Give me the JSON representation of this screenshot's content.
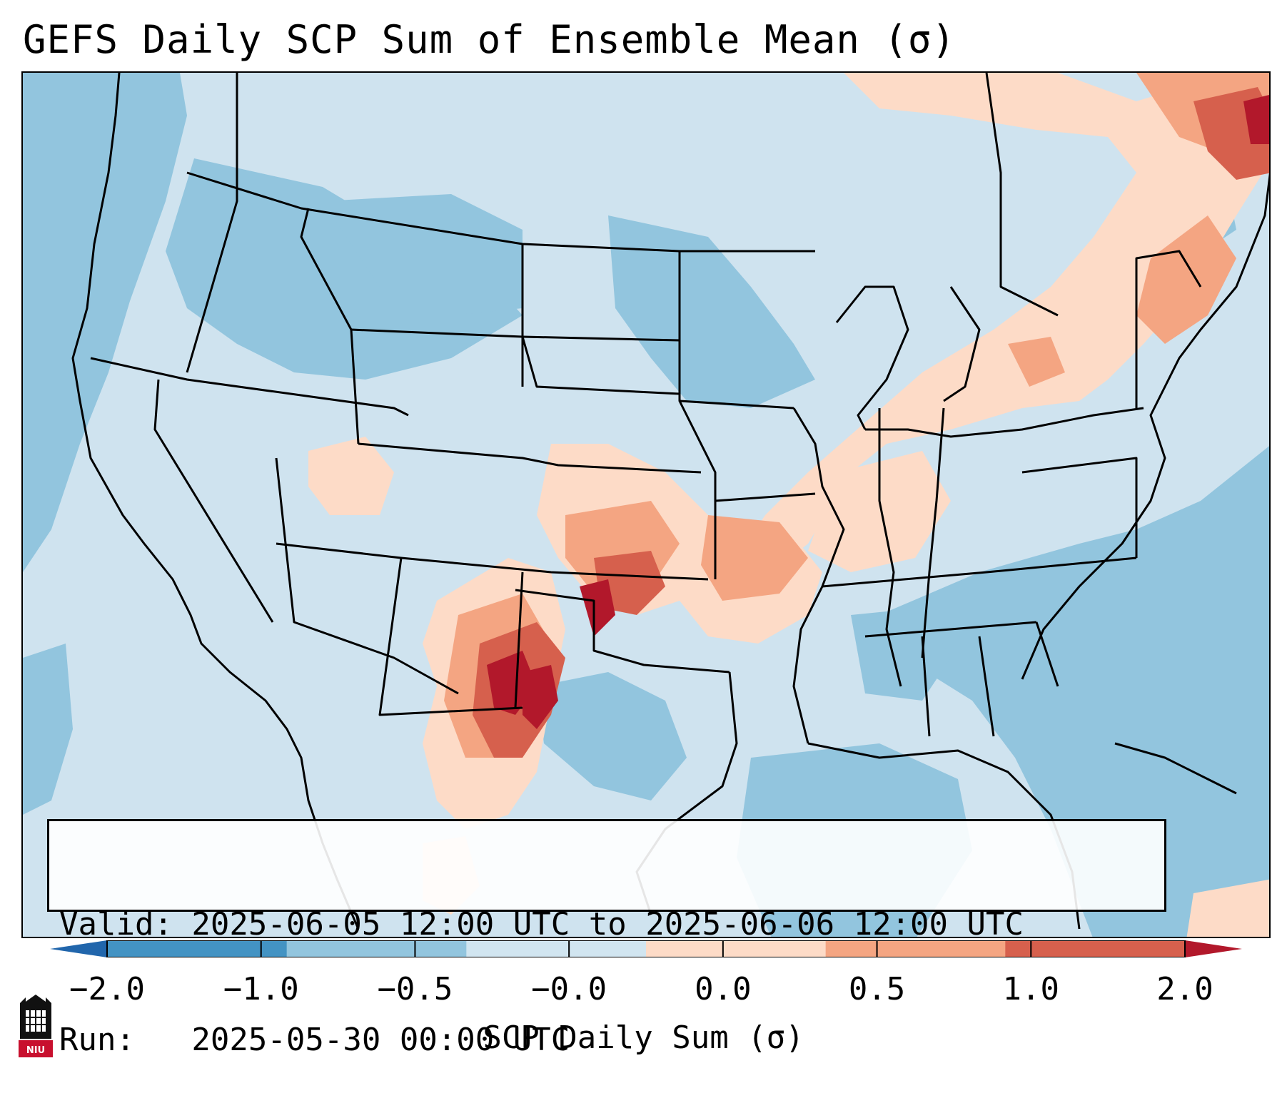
{
  "title": "GEFS Daily SCP Sum of Ensemble Mean (σ)",
  "info": {
    "valid_line": "Valid: 2025-06-05 12:00 UTC to 2025-06-06 12:00 UTC",
    "run_line": "Run:   2025-05-30 00:00 UTC"
  },
  "colorbar": {
    "label": "SCP Daily Sum (σ)",
    "ticks": [
      "−2.0",
      "−1.0",
      "−0.5",
      "−0.0",
      "0.0",
      "0.5",
      "1.0",
      "2.0"
    ],
    "colors": [
      "#2166ac",
      "#4393c3",
      "#92c5de",
      "#d1e5f0",
      "#fddbc7",
      "#f4a582",
      "#d6604d",
      "#b2182b"
    ]
  },
  "logo": {
    "text": "NIU",
    "color": "#c8102e"
  }
}
